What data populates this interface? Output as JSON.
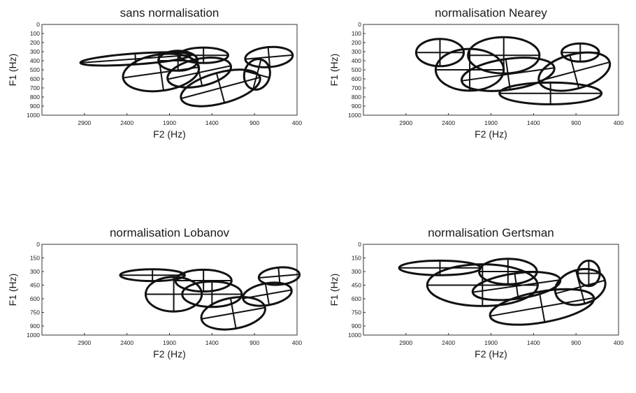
{
  "chart_data": [
    {
      "type": "scatter",
      "title": "sans normalisation",
      "xlabel": "F2 (Hz)",
      "ylabel": "F1 (Hz)",
      "xlim": [
        3400,
        400
      ],
      "ylim": [
        0,
        1000
      ],
      "x_ticks": [
        "2900",
        "2400",
        "1900",
        "1400",
        "900",
        "400"
      ],
      "y_ticks": [
        "0",
        "100",
        "200",
        "300",
        "400",
        "500",
        "600",
        "700",
        "800",
        "900",
        "1000"
      ],
      "ellipses": [
        {
          "cx": 2300,
          "cy": 380,
          "rx": 650,
          "ry": 60,
          "angle": -4
        },
        {
          "cx": 2000,
          "cy": 530,
          "rx": 450,
          "ry": 200,
          "angle": -8
        },
        {
          "cx": 1800,
          "cy": 400,
          "rx": 230,
          "ry": 110,
          "angle": 0
        },
        {
          "cx": 1500,
          "cy": 340,
          "rx": 290,
          "ry": 85,
          "angle": 0
        },
        {
          "cx": 1550,
          "cy": 530,
          "rx": 380,
          "ry": 150,
          "angle": -12
        },
        {
          "cx": 1300,
          "cy": 700,
          "rx": 480,
          "ry": 170,
          "angle": -15
        },
        {
          "cx": 870,
          "cy": 550,
          "rx": 150,
          "ry": 170,
          "angle": 15
        },
        {
          "cx": 730,
          "cy": 360,
          "rx": 280,
          "ry": 110,
          "angle": -5
        }
      ]
    },
    {
      "type": "scatter",
      "title": "normalisation Nearey",
      "xlabel": "F2 (Hz)",
      "ylabel": "F1 (Hz)",
      "xlim": [
        3400,
        400
      ],
      "ylim": [
        0,
        1000
      ],
      "x_ticks": [
        "2900",
        "2400",
        "1900",
        "1400",
        "900",
        "400"
      ],
      "y_ticks": [
        "0",
        "100",
        "200",
        "300",
        "400",
        "500",
        "600",
        "700",
        "800",
        "900",
        "1000"
      ],
      "ellipses": [
        {
          "cx": 2500,
          "cy": 310,
          "rx": 280,
          "ry": 150,
          "angle": 0
        },
        {
          "cx": 2150,
          "cy": 500,
          "rx": 400,
          "ry": 230,
          "angle": 0
        },
        {
          "cx": 1750,
          "cy": 340,
          "rx": 420,
          "ry": 200,
          "angle": 0
        },
        {
          "cx": 1700,
          "cy": 550,
          "rx": 550,
          "ry": 170,
          "angle": -8
        },
        {
          "cx": 1200,
          "cy": 760,
          "rx": 600,
          "ry": 120,
          "angle": 0
        },
        {
          "cx": 920,
          "cy": 520,
          "rx": 430,
          "ry": 190,
          "angle": -15
        },
        {
          "cx": 850,
          "cy": 310,
          "rx": 220,
          "ry": 100,
          "angle": 0
        }
      ]
    },
    {
      "type": "scatter",
      "title": "normalisation Lobanov",
      "xlabel": "F2 (Hz)",
      "ylabel": "F1 (Hz)",
      "xlim": [
        3400,
        400
      ],
      "ylim": [
        0,
        1000
      ],
      "x_ticks": [
        "2900",
        "2400",
        "1900",
        "1400",
        "900",
        "400"
      ],
      "y_ticks": [
        "0",
        "150",
        "300",
        "450",
        "600",
        "750",
        "900",
        "1000"
      ],
      "ellipses": [
        {
          "cx": 2100,
          "cy": 340,
          "rx": 380,
          "ry": 65,
          "angle": 0
        },
        {
          "cx": 1850,
          "cy": 550,
          "rx": 330,
          "ry": 190,
          "angle": 0
        },
        {
          "cx": 1500,
          "cy": 400,
          "rx": 330,
          "ry": 120,
          "angle": 0
        },
        {
          "cx": 1400,
          "cy": 550,
          "rx": 350,
          "ry": 140,
          "angle": 0
        },
        {
          "cx": 1150,
          "cy": 760,
          "rx": 380,
          "ry": 170,
          "angle": -10
        },
        {
          "cx": 750,
          "cy": 550,
          "rx": 290,
          "ry": 120,
          "angle": -10
        },
        {
          "cx": 610,
          "cy": 350,
          "rx": 240,
          "ry": 95,
          "angle": -5
        }
      ]
    },
    {
      "type": "scatter",
      "title": "normalisation Gertsman",
      "xlabel": "F2 (Hz)",
      "ylabel": "F1 (Hz)",
      "xlim": [
        3400,
        400
      ],
      "ylim": [
        0,
        1000
      ],
      "x_ticks": [
        "2900",
        "2400",
        "1900",
        "1400",
        "900",
        "400"
      ],
      "y_ticks": [
        "0",
        "150",
        "300",
        "450",
        "600",
        "750",
        "900",
        "1000"
      ],
      "ellipses": [
        {
          "cx": 2500,
          "cy": 260,
          "rx": 480,
          "ry": 80,
          "angle": 0
        },
        {
          "cx": 2000,
          "cy": 450,
          "rx": 650,
          "ry": 230,
          "angle": 0
        },
        {
          "cx": 1700,
          "cy": 300,
          "rx": 340,
          "ry": 140,
          "angle": 0
        },
        {
          "cx": 1600,
          "cy": 460,
          "rx": 520,
          "ry": 140,
          "angle": -8
        },
        {
          "cx": 1300,
          "cy": 690,
          "rx": 620,
          "ry": 170,
          "angle": -10
        },
        {
          "cx": 850,
          "cy": 470,
          "rx": 300,
          "ry": 190,
          "angle": -15
        },
        {
          "cx": 750,
          "cy": 320,
          "rx": 130,
          "ry": 140,
          "angle": 0
        }
      ]
    }
  ]
}
